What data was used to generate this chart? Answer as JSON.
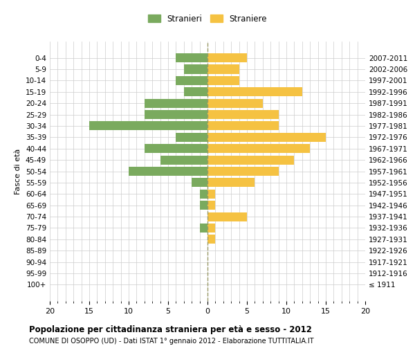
{
  "age_groups": [
    "100+",
    "95-99",
    "90-94",
    "85-89",
    "80-84",
    "75-79",
    "70-74",
    "65-69",
    "60-64",
    "55-59",
    "50-54",
    "45-49",
    "40-44",
    "35-39",
    "30-34",
    "25-29",
    "20-24",
    "15-19",
    "10-14",
    "5-9",
    "0-4"
  ],
  "birth_years": [
    "≤ 1911",
    "1912-1916",
    "1917-1921",
    "1922-1926",
    "1927-1931",
    "1932-1936",
    "1937-1941",
    "1942-1946",
    "1947-1951",
    "1952-1956",
    "1957-1961",
    "1962-1966",
    "1967-1971",
    "1972-1976",
    "1977-1981",
    "1982-1986",
    "1987-1991",
    "1992-1996",
    "1997-2001",
    "2002-2006",
    "2007-2011"
  ],
  "males": [
    0,
    0,
    0,
    0,
    0,
    1,
    0,
    1,
    1,
    2,
    10,
    6,
    8,
    4,
    15,
    8,
    8,
    3,
    4,
    3,
    4
  ],
  "females": [
    0,
    0,
    0,
    0,
    1,
    1,
    5,
    1,
    1,
    6,
    9,
    11,
    13,
    15,
    9,
    9,
    7,
    12,
    4,
    4,
    5
  ],
  "male_color": "#7aaa5e",
  "female_color": "#f5c242",
  "grid_color": "#cccccc",
  "center_line_color": "#999966",
  "xlim": 20,
  "title": "Popolazione per cittadinanza straniera per età e sesso - 2012",
  "subtitle": "COMUNE DI OSOPPO (UD) - Dati ISTAT 1° gennaio 2012 - Elaborazione TUTTITALIA.IT",
  "ylabel_left": "Fasce di età",
  "legend_stranieri": "Stranieri",
  "legend_straniere": "Straniere",
  "bg_color": "#ffffff",
  "bar_height": 0.8
}
